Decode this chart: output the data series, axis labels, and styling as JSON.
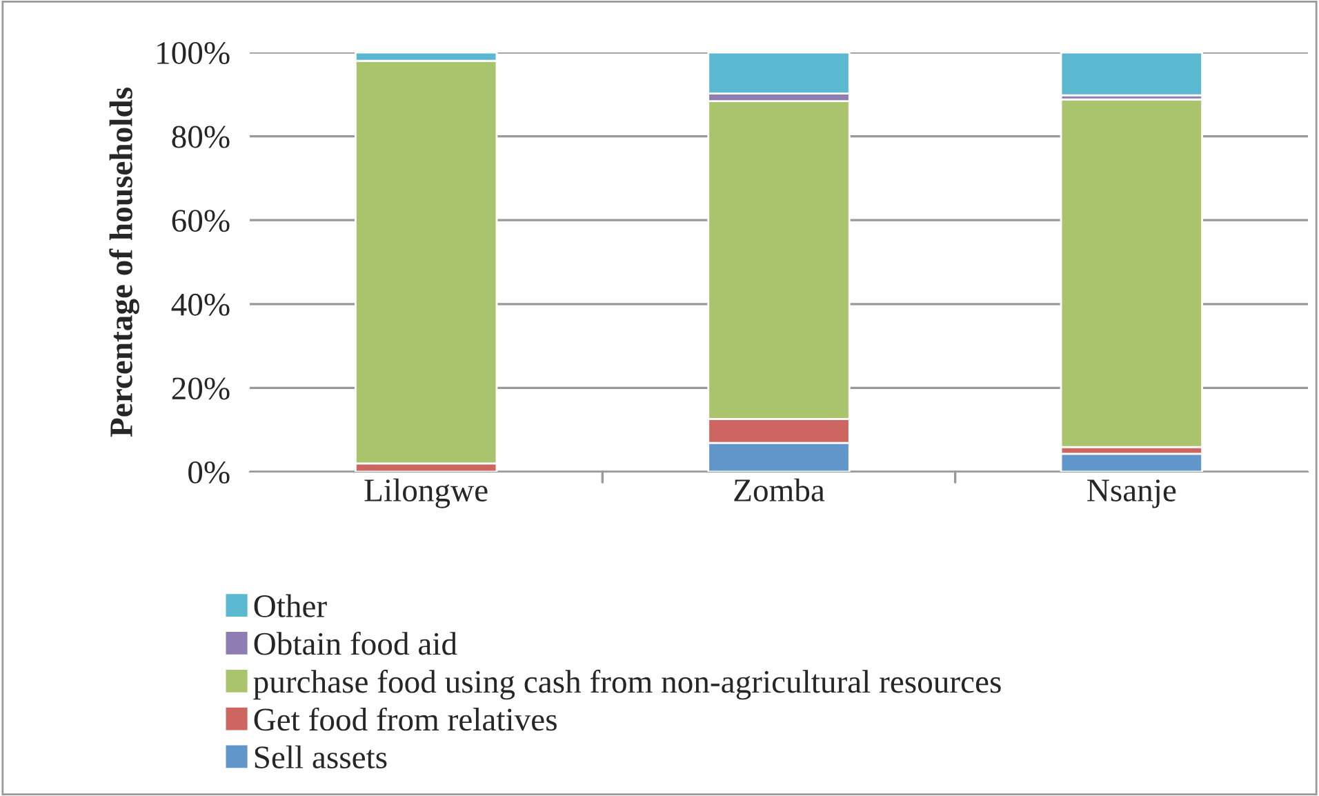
{
  "chart_data": {
    "type": "bar",
    "stacked": true,
    "ylabel": "Percentage of households",
    "categories": [
      "Lilongwe",
      "Zomba",
      "Nsanje"
    ],
    "series": [
      {
        "name": "Sell assets",
        "color": "#6096c9",
        "values": [
          0,
          6.9,
          4.3
        ]
      },
      {
        "name": "Get food from relatives",
        "color": "#cd6660",
        "values": [
          2,
          5.7,
          1.6
        ]
      },
      {
        "name": "purchase food using cash from non-agricultural resources",
        "color": "#aac46d",
        "values": [
          96,
          75.8,
          82.9
        ]
      },
      {
        "name": "Obtain food aid",
        "color": "#8e7cb3",
        "values": [
          null,
          1.8,
          1.0
        ]
      },
      {
        "name": "Other",
        "color": "#5ab9d0",
        "values": [
          2,
          9.8,
          10.2
        ]
      }
    ],
    "ylim": [
      0,
      100
    ],
    "yticks": [
      {
        "value": 0,
        "label": "0%"
      },
      {
        "value": 20,
        "label": "20%"
      },
      {
        "value": 40,
        "label": "40%"
      },
      {
        "value": 60,
        "label": "60%"
      },
      {
        "value": 80,
        "label": "80%"
      },
      {
        "value": 100,
        "label": "100%"
      }
    ],
    "grid": "y",
    "legend": "bottom"
  }
}
